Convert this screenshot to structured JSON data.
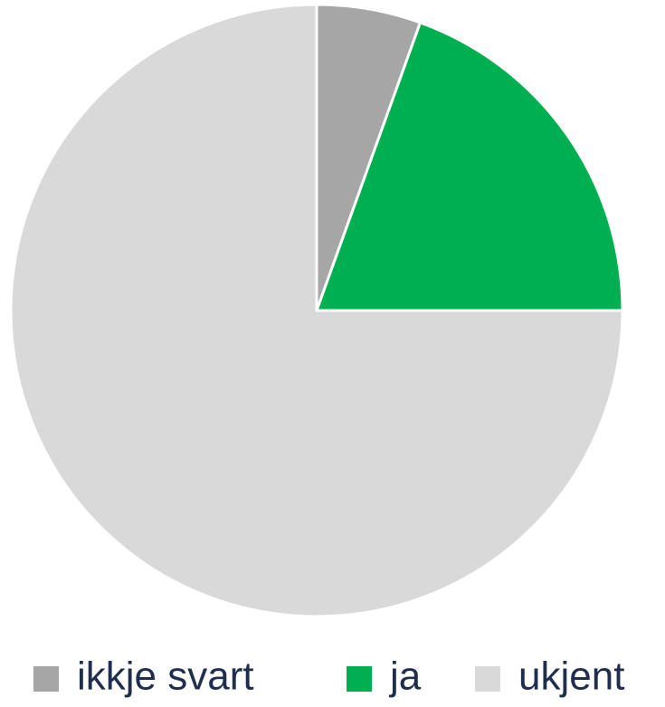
{
  "chart_data": {
    "type": "pie",
    "categories": [
      "ikkje svart",
      "ja",
      "ukjent"
    ],
    "values": [
      5.5,
      19.5,
      75
    ],
    "colors": [
      "#a6a6a6",
      "#00b050",
      "#d9d9d9"
    ],
    "legend": "bottom"
  }
}
